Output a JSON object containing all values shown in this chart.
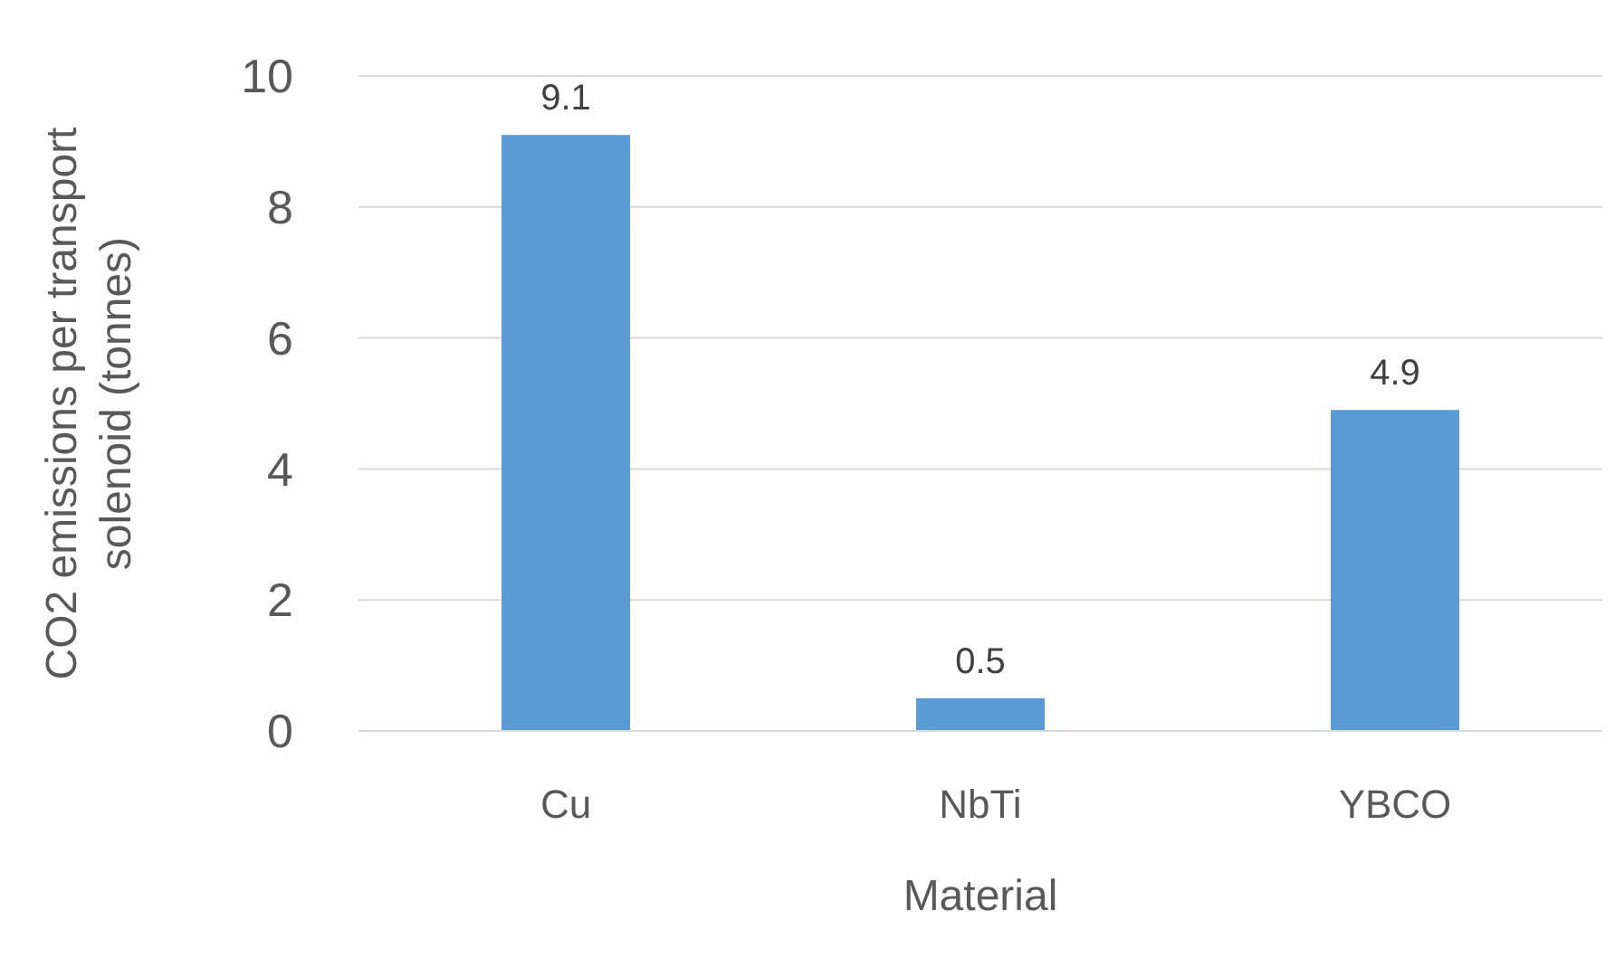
{
  "chart_data": {
    "type": "bar",
    "categories": [
      "Cu",
      "NbTi",
      "YBCO"
    ],
    "values": [
      9.1,
      0.5,
      4.9
    ],
    "color": "#5b9bd5",
    "ylim": [
      0,
      10
    ],
    "yticks": [
      0,
      2,
      4,
      6,
      8,
      10
    ],
    "grid": "y",
    "data_labels": true,
    "xlabel": "Material",
    "ylabel": "CO2 emissions per transport solenoid (tonnes)"
  }
}
